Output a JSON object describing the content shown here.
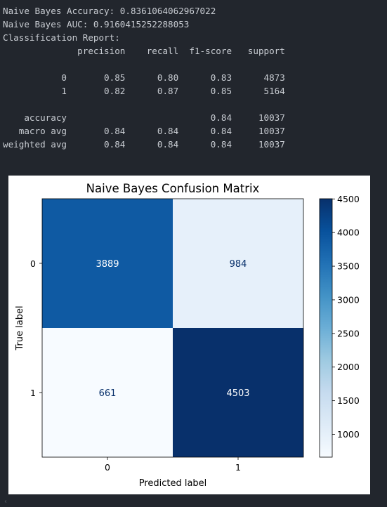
{
  "console": {
    "lines": [
      "Naive Bayes Accuracy: 0.8361064062967022",
      "Naive Bayes AUC: 0.9160415252288053",
      "Classification Report:",
      "              precision    recall  f1-score   support",
      "",
      "           0       0.85      0.80      0.83      4873",
      "           1       0.82      0.87      0.85      5164",
      "",
      "    accuracy                           0.84     10037",
      "   macro avg       0.84      0.84      0.84     10037",
      "weighted avg       0.84      0.84      0.84     10037"
    ]
  },
  "chart_data": {
    "type": "heatmap",
    "title": "Naive Bayes Confusion Matrix",
    "xlabel": "Predicted label",
    "ylabel": "True label",
    "x_categories": [
      "0",
      "1"
    ],
    "y_categories": [
      "0",
      "1"
    ],
    "values": [
      [
        3889,
        984
      ],
      [
        661,
        4503
      ]
    ],
    "colormap": "Blues",
    "colorbar": {
      "ticks": [
        1000,
        1500,
        2000,
        2500,
        3000,
        3500,
        4000,
        4500
      ],
      "range": [
        661,
        4503
      ]
    },
    "colors": {
      "low": "#f7fbff",
      "high": "#08306b",
      "text_dark": "#08306b",
      "text_light": "#ffffff"
    }
  },
  "footer": {
    "scroll_hint": "‹"
  }
}
